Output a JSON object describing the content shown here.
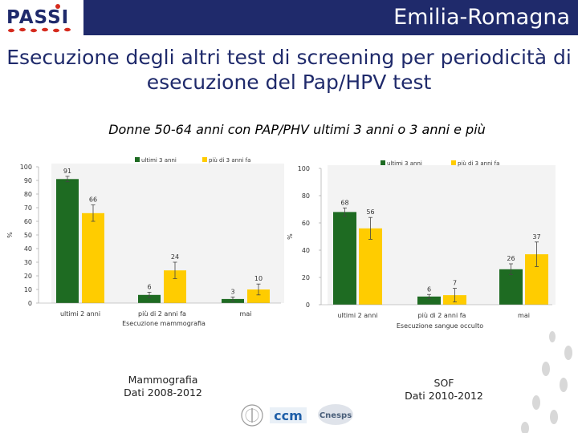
{
  "header": {
    "logo_text": "PASSI",
    "region": "Emilia-Romagna"
  },
  "title": "Esecuzione degli altri test di screening per periodicità di esecuzione del Pap/HPV test",
  "subtitle": "Donne 50-64 anni con PAP/PHV ultimi 3 anni o 3 anni e più",
  "colors": {
    "header_bg": "#1f2a6b",
    "title_text": "#1f2a6b",
    "series_ultimi": "#1e6b22",
    "series_piu": "#ffcc00"
  },
  "chart_data": [
    {
      "type": "bar",
      "categories": [
        "ultimi 2 anni",
        "più di 2 anni fa",
        "mai"
      ],
      "series": [
        {
          "name": "ultimi 3 anni",
          "values": [
            91,
            6,
            3
          ],
          "errors": [
            2,
            2,
            1.5
          ]
        },
        {
          "name": "più di 3 anni fa",
          "values": [
            66,
            24,
            10
          ],
          "errors": [
            6,
            6,
            4
          ]
        }
      ],
      "xlabel": "Esecuzione mammografia",
      "ylabel": "%",
      "yticks": [
        0,
        10,
        20,
        30,
        40,
        50,
        60,
        70,
        80,
        90,
        100
      ],
      "ylim": [
        0,
        100
      ],
      "legend": "top",
      "grid": false
    },
    {
      "type": "bar",
      "categories": [
        "ultimi 2 anni",
        "più di 2 anni fa",
        "mai"
      ],
      "series": [
        {
          "name": "ultimi 3 anni",
          "values": [
            68,
            6,
            26
          ],
          "errors": [
            3,
            1.5,
            4
          ]
        },
        {
          "name": "più di 3 anni fa",
          "values": [
            56,
            7,
            37
          ],
          "errors": [
            8,
            5,
            9
          ]
        }
      ],
      "xlabel": "Esecuzione sangue occulto",
      "ylabel": "%",
      "yticks": [
        0,
        20,
        40,
        60,
        80,
        100
      ],
      "ylim": [
        0,
        100
      ],
      "legend": "top",
      "grid": false
    }
  ],
  "captions": {
    "left_line1": "Mammografia",
    "left_line2": "Dati 2008-2012",
    "right_line1": "SOF",
    "right_line2": "Dati 2010-2012"
  },
  "footer_logos": {
    "ccm": "ccm",
    "cnesps": "Cnesps"
  }
}
